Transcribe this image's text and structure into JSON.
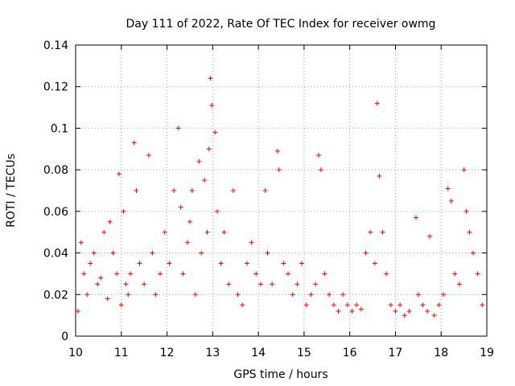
{
  "chart_data": {
    "type": "scatter",
    "title": "Day 111 of 2022, Rate Of TEC Index for receiver owmg",
    "xlabel": "GPS time / hours",
    "ylabel": "ROTI / TECUs",
    "xlim": [
      10,
      19
    ],
    "ylim": [
      0,
      0.14
    ],
    "xticks": [
      "10",
      "11",
      "12",
      "13",
      "14",
      "15",
      "16",
      "17",
      "18",
      "19"
    ],
    "yticks": [
      "0",
      "0.02",
      "0.04",
      "0.06",
      "0.08",
      "0.1",
      "0.12",
      "0.14"
    ],
    "grid": true,
    "marker": "+",
    "color": "#ff0000",
    "series": [
      {
        "x": [
          10.05,
          10.12,
          10.18,
          10.25,
          10.32,
          10.4,
          10.48,
          10.55,
          10.62,
          10.7,
          10.75,
          10.82,
          10.9,
          10.95,
          11.0,
          11.05,
          11.1,
          11.15,
          11.2,
          11.28,
          11.33,
          11.4,
          11.5,
          11.6,
          11.68,
          11.75,
          11.85,
          11.95,
          12.05,
          12.15,
          12.25,
          12.3,
          12.35,
          12.45,
          12.5,
          12.55,
          12.62,
          12.7,
          12.75,
          12.82,
          12.88,
          12.92,
          12.95,
          12.98,
          13.05,
          13.1,
          13.18,
          13.25,
          13.35,
          13.45,
          13.55,
          13.65,
          13.75,
          13.85,
          13.95,
          14.05,
          14.15,
          14.2,
          14.3,
          14.42,
          14.45,
          14.55,
          14.65,
          14.75,
          14.85,
          14.95,
          15.05,
          15.15,
          15.25,
          15.32,
          15.37,
          15.45,
          15.55,
          15.65,
          15.75,
          15.85,
          15.95,
          16.05,
          16.15,
          16.25,
          16.35,
          16.45,
          16.55,
          16.6,
          16.65,
          16.72,
          16.8,
          16.9,
          17.0,
          17.1,
          17.2,
          17.3,
          17.45,
          17.5,
          17.6,
          17.7,
          17.75,
          17.85,
          17.95,
          18.05,
          18.15,
          18.22,
          18.3,
          18.4,
          18.5,
          18.55,
          18.62,
          18.7,
          18.8,
          18.9
        ],
        "y": [
          0.012,
          0.045,
          0.03,
          0.02,
          0.035,
          0.04,
          0.025,
          0.028,
          0.05,
          0.018,
          0.055,
          0.04,
          0.03,
          0.078,
          0.015,
          0.06,
          0.025,
          0.02,
          0.03,
          0.093,
          0.07,
          0.035,
          0.025,
          0.087,
          0.04,
          0.02,
          0.03,
          0.05,
          0.035,
          0.07,
          0.1,
          0.062,
          0.03,
          0.045,
          0.055,
          0.07,
          0.02,
          0.084,
          0.04,
          0.075,
          0.05,
          0.09,
          0.124,
          0.111,
          0.098,
          0.06,
          0.035,
          0.05,
          0.025,
          0.07,
          0.02,
          0.015,
          0.035,
          0.045,
          0.03,
          0.025,
          0.07,
          0.04,
          0.025,
          0.089,
          0.08,
          0.035,
          0.03,
          0.02,
          0.025,
          0.035,
          0.015,
          0.02,
          0.025,
          0.087,
          0.08,
          0.03,
          0.02,
          0.015,
          0.012,
          0.02,
          0.015,
          0.012,
          0.015,
          0.013,
          0.04,
          0.05,
          0.035,
          0.112,
          0.077,
          0.05,
          0.03,
          0.015,
          0.012,
          0.015,
          0.01,
          0.012,
          0.057,
          0.02,
          0.015,
          0.012,
          0.048,
          0.01,
          0.015,
          0.02,
          0.071,
          0.065,
          0.03,
          0.025,
          0.08,
          0.06,
          0.05,
          0.04,
          0.03,
          0.015
        ]
      }
    ]
  }
}
